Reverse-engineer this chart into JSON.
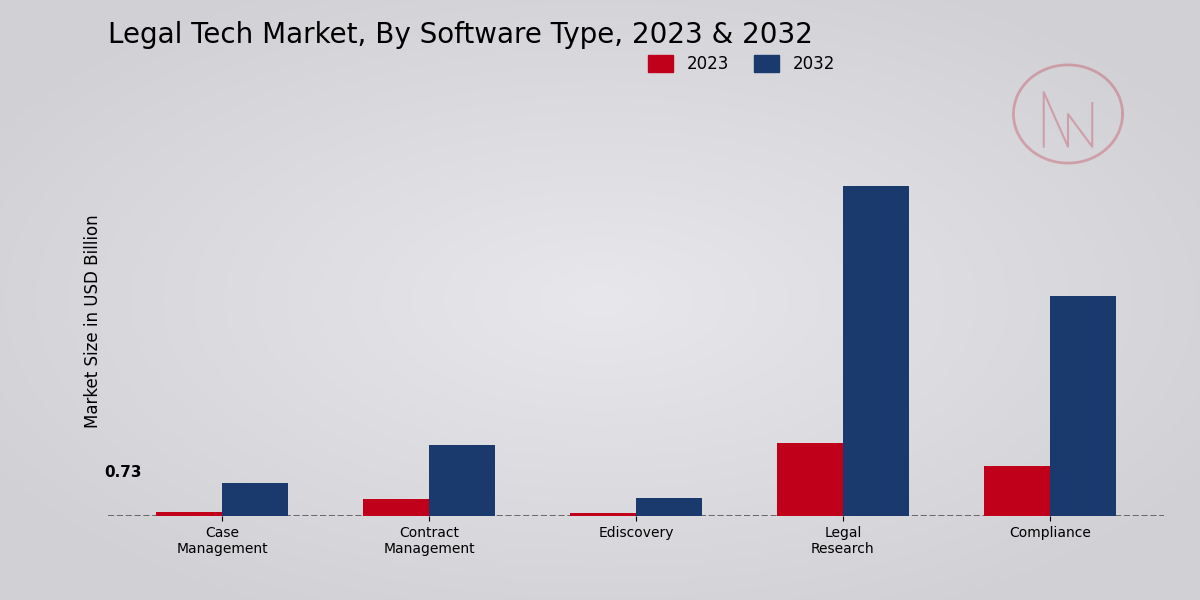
{
  "title": "Legal Tech Market, By Software Type, 2023 & 2032",
  "ylabel": "Market Size in USD Billion",
  "categories": [
    "Case\nManagement",
    "Contract\nManagement",
    "Ediscovery",
    "Legal\nResearch",
    "Compliance"
  ],
  "values_2023": [
    0.08,
    0.38,
    0.06,
    1.6,
    1.1
  ],
  "values_2032": [
    0.73,
    1.55,
    0.4,
    7.2,
    4.8
  ],
  "color_2023": "#c0001a",
  "color_2032": "#1a3a6e",
  "annotation_text": "0.73",
  "dashed_line_y": 0.0,
  "bg_outer": "#d0d0d5",
  "bg_inner": "#e8e8ec",
  "bar_width": 0.32,
  "legend_labels": [
    "2023",
    "2032"
  ],
  "title_fontsize": 20,
  "axis_label_fontsize": 12,
  "tick_fontsize": 10,
  "legend_fontsize": 12,
  "ylim": [
    0,
    8.5
  ]
}
